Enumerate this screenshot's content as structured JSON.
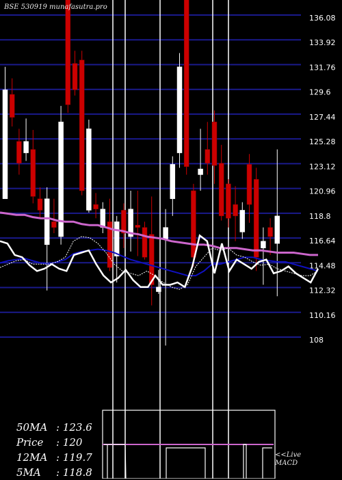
{
  "chart_data": {
    "type": "candlestick",
    "title": "BSE 530919 munafasutra.pro",
    "y_ticks": [
      136.08,
      133.92,
      131.76,
      129.6,
      127.44,
      125.28,
      123.12,
      120.96,
      118.8,
      116.64,
      114.48,
      112.32,
      110.16,
      108
    ],
    "ylim": [
      108,
      136.6
    ],
    "grid": true,
    "colors": {
      "up": "#ffffff",
      "down": "#cc0000",
      "grid": "#1a1a8c",
      "ma_slow": "#cc66cc",
      "ma_mid": "#1010c0",
      "price_line": "#ffffff",
      "background": "#000000"
    },
    "candles": [
      {
        "o": 120.3,
        "c": 129.8,
        "h": 131.8,
        "l": 120.3
      },
      {
        "o": 129.4,
        "c": 127.4,
        "h": 130.8,
        "l": 126.6
      },
      {
        "o": 125.3,
        "c": 123.4,
        "h": 126.4,
        "l": 122.4
      },
      {
        "o": 124.3,
        "c": 125.3,
        "h": 127.3,
        "l": 123.6
      },
      {
        "o": 124.6,
        "c": 120.5,
        "h": 126.3,
        "l": 119.9
      },
      {
        "o": 120.3,
        "c": 119.3,
        "h": 121.3,
        "l": 118.6
      },
      {
        "o": 116.3,
        "c": 120.3,
        "h": 121.3,
        "l": 112.3
      },
      {
        "o": 118.3,
        "c": 117.8,
        "h": 120.3,
        "l": 117.3
      },
      {
        "o": 117.0,
        "c": 127.0,
        "h": 128.4,
        "l": 116.3
      },
      {
        "o": 138.0,
        "c": 128.5,
        "h": 139.0,
        "l": 127.8
      },
      {
        "o": 132.1,
        "c": 129.8,
        "h": 133.2,
        "l": 129.3
      },
      {
        "o": 132.4,
        "c": 121.0,
        "h": 133.2,
        "l": 120.6
      },
      {
        "o": 119.3,
        "c": 126.4,
        "h": 127.2,
        "l": 119.1
      },
      {
        "o": 119.8,
        "c": 119.4,
        "h": 120.8,
        "l": 118.6
      },
      {
        "o": 117.8,
        "c": 119.4,
        "h": 120.0,
        "l": 117.3
      },
      {
        "o": 118.3,
        "c": 114.3,
        "h": 120.3,
        "l": 114.0
      },
      {
        "o": 115.3,
        "c": 118.3,
        "h": 118.8,
        "l": 113.0
      },
      {
        "o": 119.3,
        "c": 117.3,
        "h": 119.9,
        "l": 116.0
      },
      {
        "o": 117.0,
        "c": 119.4,
        "h": 121.0,
        "l": 115.7
      },
      {
        "o": 118.0,
        "c": 117.8,
        "h": 121.0,
        "l": 115.3
      },
      {
        "o": 117.8,
        "c": 115.2,
        "h": 118.3,
        "l": 115.0
      },
      {
        "o": 117.2,
        "c": 112.8,
        "h": 120.5,
        "l": 111.0
      },
      {
        "o": 112.2,
        "c": 112.6,
        "h": 114.1,
        "l": 112.0
      },
      {
        "o": 116.8,
        "c": 117.8,
        "h": 119.4,
        "l": 107.5
      },
      {
        "o": 120.3,
        "c": 123.3,
        "h": 124.0,
        "l": 118.8
      },
      {
        "o": 124.3,
        "c": 131.8,
        "h": 133.0,
        "l": 123.0
      },
      {
        "o": 138.4,
        "c": 123.1,
        "h": 139.0,
        "l": 122.4
      },
      {
        "o": 121.0,
        "c": 115.2,
        "h": 121.6,
        "l": 114.4
      },
      {
        "o": 122.4,
        "c": 122.9,
        "h": 126.4,
        "l": 121.0
      },
      {
        "o": 124.6,
        "c": 123.4,
        "h": 127.0,
        "l": 122.4
      },
      {
        "o": 127.0,
        "c": 123.2,
        "h": 128.0,
        "l": 121.6
      },
      {
        "o": 123.4,
        "c": 118.8,
        "h": 125.0,
        "l": 118.4
      },
      {
        "o": 121.6,
        "c": 118.6,
        "h": 122.0,
        "l": 117.8
      },
      {
        "o": 119.8,
        "c": 118.8,
        "h": 121.4,
        "l": 116.6
      },
      {
        "o": 117.4,
        "c": 119.3,
        "h": 120.0,
        "l": 116.8
      },
      {
        "o": 123.3,
        "c": 119.8,
        "h": 124.2,
        "l": 118.2
      },
      {
        "o": 122.0,
        "c": 115.2,
        "h": 123.0,
        "l": 114.0
      },
      {
        "o": 116.0,
        "c": 116.6,
        "h": 117.8,
        "l": 112.8
      },
      {
        "o": 117.8,
        "c": 117.0,
        "h": 118.6,
        "l": 115.4
      },
      {
        "o": 116.4,
        "c": 118.8,
        "h": 124.6,
        "l": 111.8
      }
    ],
    "ma_slow": [
      119.1,
      119.0,
      118.9,
      118.9,
      118.7,
      118.6,
      118.6,
      118.4,
      118.3,
      118.3,
      118.1,
      118.0,
      118.0,
      117.8,
      117.6,
      117.5,
      117.3,
      117.2,
      117.0,
      116.9,
      116.8,
      116.6,
      116.5,
      116.4,
      116.3,
      116.3,
      116.2,
      116.0,
      116.0,
      116.0,
      115.9,
      115.8,
      115.8,
      115.7,
      115.6,
      115.6,
      115.6,
      115.5,
      115.4,
      115.4
    ],
    "ma_mid": [
      114.7,
      114.9,
      115.0,
      115.1,
      114.9,
      114.7,
      114.6,
      114.8,
      115.0,
      115.5,
      115.7,
      115.8,
      115.9,
      115.8,
      115.6,
      115.3,
      115.0,
      114.8,
      114.6,
      114.4,
      114.2,
      114.0,
      113.8,
      113.6,
      113.6,
      114.0,
      114.6,
      114.6,
      114.8,
      115.0,
      115.2,
      115.2,
      115.0,
      114.9,
      114.8,
      114.8,
      114.6,
      114.4,
      114.2,
      114.0
    ],
    "ma_fast": [
      114.3,
      114.6,
      114.9,
      115.0,
      114.6,
      114.6,
      114.6,
      114.8,
      115.2,
      116.6,
      117.0,
      116.9,
      116.4,
      115.6,
      114.6,
      114.0,
      113.8,
      113.6,
      114.0,
      113.6,
      113.0,
      112.6,
      112.4,
      112.8,
      114.4,
      115.2,
      116.0,
      115.8,
      116.0,
      115.4,
      115.2,
      114.8,
      114.5,
      114.6,
      114.2,
      114.0,
      113.8,
      113.6,
      113.6,
      114.0
    ],
    "close_line": [
      116.6,
      116.4,
      115.4,
      115.2,
      114.5,
      114.0,
      114.2,
      114.6,
      114.2,
      114.0,
      115.4,
      115.6,
      115.8,
      114.6,
      113.6,
      113.0,
      113.4,
      114.1,
      113.2,
      112.6,
      112.6,
      113.6,
      112.8,
      112.8,
      113.0,
      112.6,
      114.4,
      117.1,
      116.6,
      113.8,
      116.4,
      114.0,
      115.0,
      114.6,
      114.2,
      114.8,
      115.0,
      113.8,
      114.0,
      114.4,
      113.8,
      113.4,
      113.0,
      114.2
    ],
    "stats": [
      {
        "label": "50MA",
        "value": "123.6"
      },
      {
        "label": "Price",
        "value": "120"
      },
      {
        "label": "12MA",
        "value": "119.7"
      },
      {
        "label": "5MA",
        "value": "118.8"
      }
    ],
    "macd_label": [
      "<<Live",
      "MACD"
    ]
  }
}
